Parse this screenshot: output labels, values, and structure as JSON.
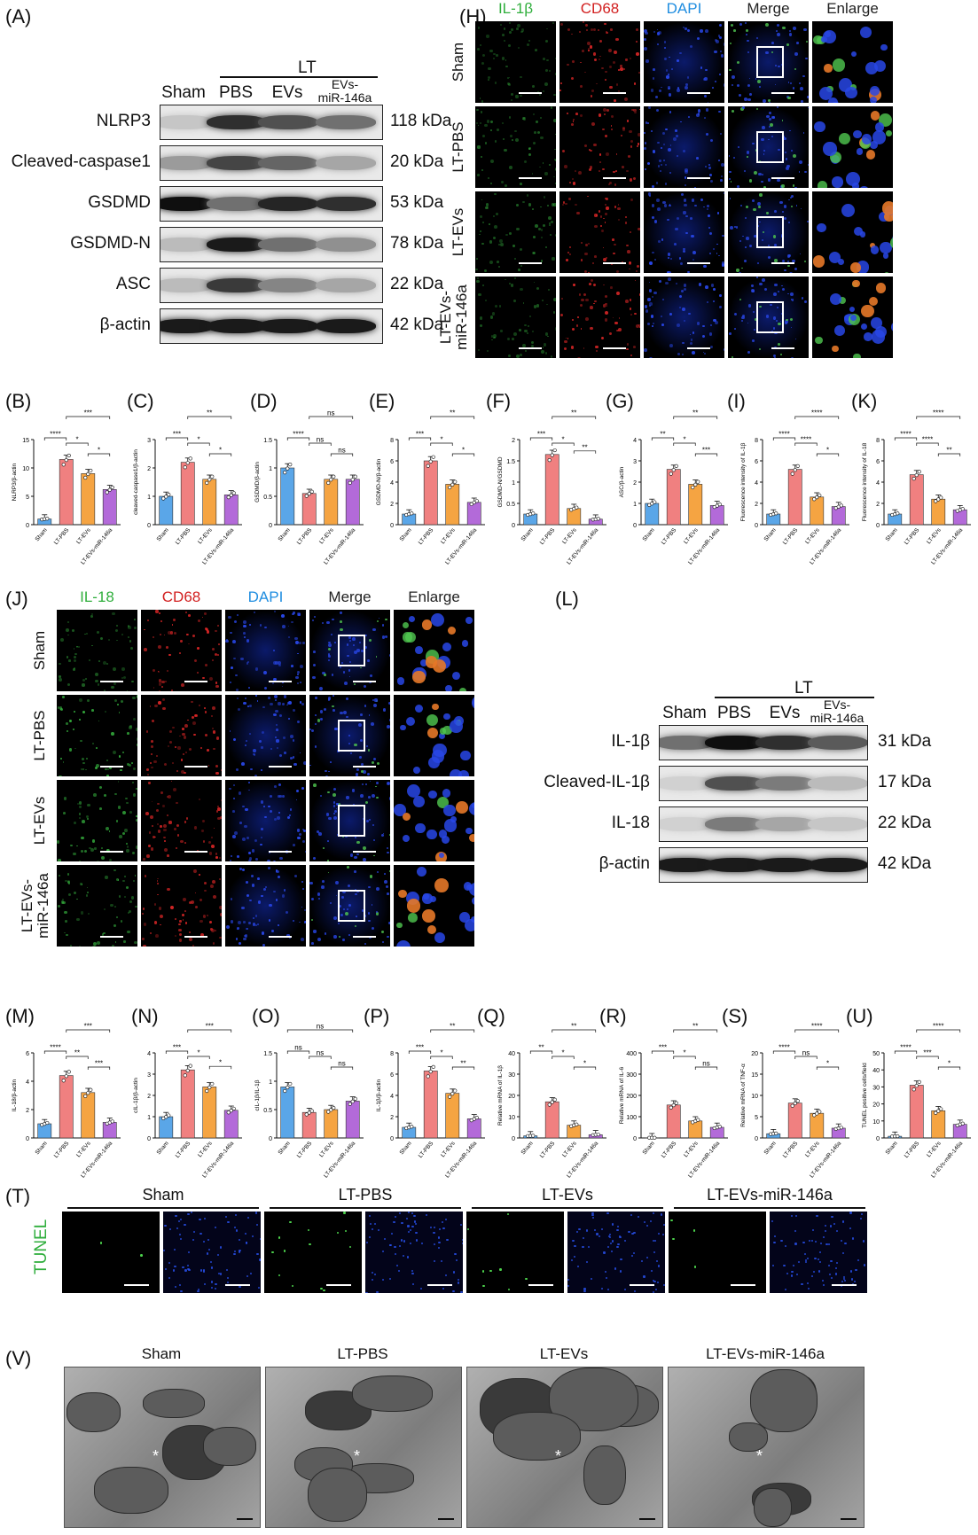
{
  "panels": {
    "A": "(A)",
    "H": "(H)",
    "B": "(B)",
    "C": "(C)",
    "D": "(D)",
    "E": "(E)",
    "F": "(F)",
    "G": "(G)",
    "I": "(I)",
    "K": "(K)",
    "J": "(J)",
    "L": "(L)",
    "M": "(M)",
    "N": "(N)",
    "O": "(O)",
    "P": "(P)",
    "Q": "(Q)",
    "R": "(R)",
    "S": "(S)",
    "U": "(U)",
    "T": "(T)",
    "V": "(V)"
  },
  "blotA": {
    "lt": "LT",
    "lanes": [
      "Sham",
      "PBS",
      "EVs",
      "EVs-\nmiR-146a"
    ],
    "rows": [
      {
        "name": "NLRP3",
        "kda": "118 kDa",
        "intensity": [
          0.15,
          0.85,
          0.7,
          0.55
        ]
      },
      {
        "name": "Cleaved-caspase1",
        "kda": "20 kDa",
        "intensity": [
          0.35,
          0.75,
          0.6,
          0.3
        ]
      },
      {
        "name": "GSDMD",
        "kda": "53 kDa",
        "intensity": [
          1.0,
          0.55,
          0.9,
          0.85
        ]
      },
      {
        "name": "GSDMD-N",
        "kda": "78 kDa",
        "intensity": [
          0.2,
          0.95,
          0.55,
          0.4
        ]
      },
      {
        "name": "ASC",
        "kda": "22 kDa",
        "intensity": [
          0.2,
          0.8,
          0.45,
          0.3
        ]
      },
      {
        "name": "β-actin",
        "kda": "42 kDa",
        "intensity": [
          0.95,
          0.95,
          0.95,
          0.95
        ]
      }
    ]
  },
  "blotL": {
    "lt": "LT",
    "lanes": [
      "Sham",
      "PBS",
      "EVs",
      "EVs-\nmiR-146a"
    ],
    "rows": [
      {
        "name": "IL-1β",
        "kda": "31 kDa",
        "intensity": [
          0.55,
          1.0,
          0.85,
          0.65
        ]
      },
      {
        "name": "Cleaved-IL-1β",
        "kda": "17 kDa",
        "intensity": [
          0.1,
          0.7,
          0.5,
          0.2
        ]
      },
      {
        "name": "IL-18",
        "kda": "22 kDa",
        "intensity": [
          0.1,
          0.5,
          0.3,
          0.15
        ]
      },
      {
        "name": "β-actin",
        "kda": "42 kDa",
        "intensity": [
          0.95,
          0.95,
          0.95,
          0.95
        ]
      }
    ]
  },
  "ifH": {
    "channels": [
      {
        "name": "IL-1β",
        "color": "#2fae3c"
      },
      {
        "name": "CD68",
        "color": "#d21f1f"
      },
      {
        "name": "DAPI",
        "color": "#1f8de0"
      },
      {
        "name": "Merge",
        "color": "#222222"
      },
      {
        "name": "Enlarge",
        "color": "#222222"
      }
    ],
    "rows": [
      "Sham",
      "LT-PBS",
      "LT-EVs",
      "LT-EVs-\nmiR-146a"
    ]
  },
  "ifJ": {
    "channels": [
      {
        "name": "IL-18",
        "color": "#2fae3c"
      },
      {
        "name": "CD68",
        "color": "#d21f1f"
      },
      {
        "name": "DAPI",
        "color": "#1f8de0"
      },
      {
        "name": "Merge",
        "color": "#222222"
      },
      {
        "name": "Enlarge",
        "color": "#222222"
      }
    ],
    "rows": [
      "Sham",
      "LT-PBS",
      "LT-EVs",
      "LT-EVs-\nmiR-146a"
    ]
  },
  "tunel": {
    "side_label": "TUNEL",
    "groups": [
      "Sham",
      "LT-PBS",
      "LT-EVs",
      "LT-EVs-miR-146a"
    ]
  },
  "tem": {
    "groups": [
      "Sham",
      "LT-PBS",
      "LT-EVs",
      "LT-EVs-miR-146a"
    ]
  },
  "colors": {
    "sham": "#5aa6e8",
    "pbs": "#f08080",
    "evs": "#f5a442",
    "mir": "#b36ad9"
  },
  "chart_data": [
    {
      "id": "B",
      "type": "bar",
      "categories": [
        "Sham",
        "LT-PBS",
        "LT-EVs",
        "LT-EVs-miR-146a"
      ],
      "values": [
        1,
        11.5,
        9,
        6.2
      ],
      "ylabel": "NLRP3/β-actin",
      "ylim": [
        0,
        15
      ],
      "ticks": [
        0,
        5,
        10,
        15
      ],
      "sig": [
        [
          "****",
          0,
          1
        ],
        [
          "*",
          1,
          2
        ],
        [
          "*",
          2,
          3
        ],
        [
          "***",
          1,
          3
        ]
      ]
    },
    {
      "id": "C",
      "type": "bar",
      "categories": [
        "Sham",
        "LT-PBS",
        "LT-EVs",
        "LT-EVs-miR-146a"
      ],
      "values": [
        1,
        2.2,
        1.6,
        1.05
      ],
      "ylabel": "cleaved-caspase1/β-actin",
      "ylim": [
        0,
        3
      ],
      "ticks": [
        0,
        1,
        2,
        3
      ],
      "sig": [
        [
          "***",
          0,
          1
        ],
        [
          "*",
          1,
          2
        ],
        [
          "*",
          2,
          3
        ],
        [
          "**",
          1,
          3
        ]
      ]
    },
    {
      "id": "D",
      "type": "bar",
      "categories": [
        "Sham",
        "LT-PBS",
        "LT-EVs",
        "LT-EVs-miR-146a"
      ],
      "values": [
        1,
        0.55,
        0.8,
        0.8
      ],
      "ylabel": "GSDMD/β-actin",
      "ylim": [
        0,
        1.5
      ],
      "ticks": [
        0,
        0.5,
        1.0,
        1.5
      ],
      "sig": [
        [
          "****",
          0,
          1
        ],
        [
          "ns",
          1,
          2
        ],
        [
          "ns",
          2,
          3
        ],
        [
          "ns",
          1,
          3
        ]
      ]
    },
    {
      "id": "E",
      "type": "bar",
      "categories": [
        "Sham",
        "LT-PBS",
        "LT-EVs",
        "LT-EVs-miR-146a"
      ],
      "values": [
        1,
        6,
        3.8,
        2.1
      ],
      "ylabel": "GSDMD-N/β-actin",
      "ylim": [
        0,
        8
      ],
      "ticks": [
        0,
        2,
        4,
        6,
        8
      ],
      "sig": [
        [
          "***",
          0,
          1
        ],
        [
          "*",
          1,
          2
        ],
        [
          "*",
          2,
          3
        ],
        [
          "**",
          1,
          3
        ]
      ]
    },
    {
      "id": "F",
      "type": "bar",
      "categories": [
        "Sham",
        "LT-PBS",
        "LT-EVs",
        "LT-EVs-miR-146a"
      ],
      "values": [
        0.25,
        1.65,
        0.38,
        0.13
      ],
      "ylabel": "GSDMD-N/GSDMD",
      "ylim": [
        0,
        2.0
      ],
      "ticks": [
        0,
        0.5,
        1.0,
        1.5,
        2.0
      ],
      "sig": [
        [
          "***",
          0,
          1
        ],
        [
          "*",
          1,
          2
        ],
        [
          "**",
          2,
          3
        ],
        [
          "**",
          1,
          3
        ]
      ]
    },
    {
      "id": "G",
      "type": "bar",
      "categories": [
        "Sham",
        "LT-PBS",
        "LT-EVs",
        "LT-EVs-miR-146a"
      ],
      "values": [
        1,
        2.6,
        1.9,
        0.9
      ],
      "ylabel": "ASC/β-actin",
      "ylim": [
        0,
        4
      ],
      "ticks": [
        0,
        1,
        2,
        3,
        4
      ],
      "sig": [
        [
          "**",
          0,
          1
        ],
        [
          "*",
          1,
          2
        ],
        [
          "***",
          2,
          3
        ],
        [
          "**",
          1,
          3
        ]
      ]
    },
    {
      "id": "I",
      "type": "bar",
      "categories": [
        "Sham",
        "LT-PBS",
        "LT-EVs",
        "LT-EVs-miR-146a"
      ],
      "values": [
        1,
        5.2,
        2.6,
        1.7
      ],
      "ylabel": "Fluorescence intensity of IL-1β",
      "ylim": [
        0,
        8
      ],
      "ticks": [
        0,
        2,
        4,
        6,
        8
      ],
      "sig": [
        [
          "****",
          0,
          1
        ],
        [
          "****",
          1,
          2
        ],
        [
          "*",
          2,
          3
        ],
        [
          "****",
          1,
          3
        ]
      ]
    },
    {
      "id": "K",
      "type": "bar",
      "categories": [
        "Sham",
        "LT-PBS",
        "LT-EVs",
        "LT-EVs-miR-146a"
      ],
      "values": [
        1,
        4.7,
        2.4,
        1.4
      ],
      "ylabel": "Fluorescence intensity of IL-18",
      "ylim": [
        0,
        8
      ],
      "ticks": [
        0,
        2,
        4,
        6,
        8
      ],
      "sig": [
        [
          "****",
          0,
          1
        ],
        [
          "****",
          1,
          2
        ],
        [
          "**",
          2,
          3
        ],
        [
          "****",
          1,
          3
        ]
      ]
    },
    {
      "id": "M",
      "type": "bar",
      "categories": [
        "Sham",
        "LT-PBS",
        "LT-EVs",
        "LT-EVs-miR-146a"
      ],
      "values": [
        1,
        4.4,
        3.2,
        1.1
      ],
      "ylabel": "IL-18/β-actin",
      "ylim": [
        0,
        6
      ],
      "ticks": [
        0,
        2,
        4,
        6
      ],
      "sig": [
        [
          "****",
          0,
          1
        ],
        [
          "**",
          1,
          2
        ],
        [
          "***",
          2,
          3
        ],
        [
          "***",
          1,
          3
        ]
      ]
    },
    {
      "id": "N",
      "type": "bar",
      "categories": [
        "Sham",
        "LT-PBS",
        "LT-EVs",
        "LT-EVs-miR-146a"
      ],
      "values": [
        1,
        3.2,
        2.4,
        1.3
      ],
      "ylabel": "cIL-1β/β-actin",
      "ylim": [
        0,
        4
      ],
      "ticks": [
        0,
        1,
        2,
        3,
        4
      ],
      "sig": [
        [
          "***",
          0,
          1
        ],
        [
          "*",
          1,
          2
        ],
        [
          "*",
          2,
          3
        ],
        [
          "***",
          1,
          3
        ]
      ]
    },
    {
      "id": "O",
      "type": "bar",
      "categories": [
        "Sham",
        "LT-PBS",
        "LT-EVs",
        "LT-EVs-miR-146a"
      ],
      "values": [
        0.9,
        0.45,
        0.5,
        0.65
      ],
      "ylabel": "cIL-1β/IL-1β",
      "ylim": [
        0,
        1.5
      ],
      "ticks": [
        0,
        0.5,
        1.0,
        1.5
      ],
      "sig": [
        [
          "ns",
          0,
          1
        ],
        [
          "ns",
          1,
          2
        ],
        [
          "ns",
          2,
          3
        ],
        [
          "ns",
          0,
          3
        ]
      ]
    },
    {
      "id": "P",
      "type": "bar",
      "categories": [
        "Sham",
        "LT-PBS",
        "LT-EVs",
        "LT-EVs-miR-146a"
      ],
      "values": [
        1,
        6.3,
        4.2,
        1.8
      ],
      "ylabel": "IL-1β/β-actin",
      "ylim": [
        0,
        8
      ],
      "ticks": [
        0,
        2,
        4,
        6,
        8
      ],
      "sig": [
        [
          "***",
          0,
          1
        ],
        [
          "*",
          1,
          2
        ],
        [
          "**",
          2,
          3
        ],
        [
          "**",
          1,
          3
        ]
      ]
    },
    {
      "id": "Q",
      "type": "bar",
      "categories": [
        "Sham",
        "LT-PBS",
        "LT-EVs",
        "LT-EVs-miR-146a"
      ],
      "values": [
        1,
        17,
        6,
        1.5
      ],
      "ylabel": "Relative mRNA of IL-1β",
      "ylim": [
        0,
        40
      ],
      "ticks": [
        0,
        10,
        20,
        30,
        40
      ],
      "sig": [
        [
          "**",
          0,
          1
        ],
        [
          "*",
          1,
          2
        ],
        [
          "*",
          2,
          3
        ],
        [
          "**",
          1,
          3
        ]
      ]
    },
    {
      "id": "R",
      "type": "bar",
      "categories": [
        "Sham",
        "LT-PBS",
        "LT-EVs",
        "LT-EVs-miR-146a"
      ],
      "values": [
        1,
        155,
        80,
        50
      ],
      "ylabel": "Relative mRNA of IL-6",
      "ylim": [
        0,
        400
      ],
      "ticks": [
        0,
        100,
        200,
        300,
        400
      ],
      "sig": [
        [
          "***",
          0,
          1
        ],
        [
          "*",
          1,
          2
        ],
        [
          "ns",
          2,
          3
        ],
        [
          "**",
          1,
          3
        ]
      ]
    },
    {
      "id": "S",
      "type": "bar",
      "categories": [
        "Sham",
        "LT-PBS",
        "LT-EVs",
        "LT-EVs-miR-146a"
      ],
      "values": [
        1,
        8.2,
        5.8,
        2.3
      ],
      "ylabel": "Relative mRNA of TNF-α",
      "ylim": [
        0,
        20
      ],
      "ticks": [
        0,
        5,
        10,
        15,
        20
      ],
      "sig": [
        [
          "****",
          0,
          1
        ],
        [
          "ns",
          1,
          2
        ],
        [
          "*",
          2,
          3
        ],
        [
          "****",
          1,
          3
        ]
      ]
    },
    {
      "id": "U",
      "type": "bar",
      "categories": [
        "Sham",
        "LT-PBS",
        "LT-EVs",
        "LT-EVs-miR-146a"
      ],
      "values": [
        1,
        31,
        16,
        8
      ],
      "ylabel": "TUNEL positive cells/field",
      "ylim": [
        0,
        50
      ],
      "ticks": [
        0,
        10,
        20,
        30,
        40,
        50
      ],
      "sig": [
        [
          "****",
          0,
          1
        ],
        [
          "***",
          1,
          2
        ],
        [
          "*",
          2,
          3
        ],
        [
          "****",
          1,
          3
        ]
      ]
    }
  ]
}
